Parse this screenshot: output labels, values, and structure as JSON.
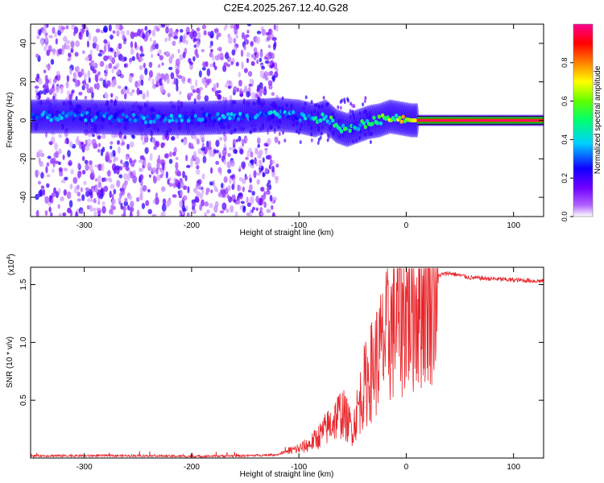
{
  "title": "C2E4.2025.267.12.40.G28",
  "chart_data": [
    {
      "type": "heatmap",
      "panel": "spectrogram",
      "xlabel": "Height of straight line (km)",
      "ylabel": "Frequency (Hz)",
      "xlim": [
        -350,
        128
      ],
      "ylim": [
        -50,
        50
      ],
      "xticks": [
        -300,
        -200,
        -100,
        0,
        100
      ],
      "xtick_labels": [
        "-300",
        "-200",
        "-100",
        "0",
        "100"
      ],
      "yticks": [
        -40,
        -20,
        0,
        20,
        40
      ],
      "ytick_labels": [
        "-40",
        "-20",
        "0",
        "20",
        "40"
      ],
      "colorbar": {
        "label": "Normalized spectral amplitude",
        "range": [
          0,
          1
        ],
        "ticks": [
          0.0,
          0.2,
          0.4,
          0.6,
          0.8
        ],
        "tick_labels": [
          "0.0",
          "0.2",
          "0.4",
          "0.6",
          "0.8"
        ],
        "colors": [
          "#ffffff",
          "#9a00ff",
          "#1a00ff",
          "#00ffff",
          "#00ff00",
          "#ffff00",
          "#ff8000",
          "#ff0000",
          "#ff00a0"
        ]
      },
      "ridge": {
        "description_points_x": [
          -350,
          -300,
          -250,
          -200,
          -150,
          -120,
          -100,
          -85,
          -75,
          -65,
          -55,
          -45,
          -35,
          -25,
          -15,
          -5,
          5,
          20,
          60,
          128
        ],
        "frequency_center_hz": [
          2,
          2,
          1,
          1,
          2,
          3,
          2,
          0,
          2,
          -3,
          -5,
          -3,
          -1,
          0,
          2,
          1,
          0,
          0,
          0,
          0
        ],
        "amplitude": [
          0.3,
          0.3,
          0.3,
          0.3,
          0.3,
          0.35,
          0.3,
          0.4,
          0.45,
          0.5,
          0.4,
          0.45,
          0.5,
          0.55,
          0.6,
          0.6,
          0.65,
          0.9,
          0.95,
          0.95
        ]
      }
    },
    {
      "type": "line",
      "panel": "snr",
      "xlabel": "Height of straight line (km)",
      "ylabel": "SNR (10 * v/v)",
      "y_multiplier_label": "(x10",
      "y_multiplier_exp": "4",
      "xlim": [
        -350,
        128
      ],
      "ylim": [
        0,
        1.65
      ],
      "xticks": [
        -300,
        -200,
        -100,
        0,
        100
      ],
      "xtick_labels": [
        "-300",
        "-200",
        "-100",
        "0",
        "100"
      ],
      "yticks": [
        0.5,
        1.0,
        1.5
      ],
      "ytick_labels": [
        "0.5",
        "1.0",
        "1.5"
      ],
      "color": "#e8252a",
      "series": [
        {
          "name": "SNR",
          "x": [
            -350,
            -300,
            -250,
            -200,
            -150,
            -120,
            -110,
            -100,
            -90,
            -80,
            -70,
            -60,
            -50,
            -40,
            -30,
            -20,
            -10,
            0,
            10,
            20,
            30,
            40,
            50,
            60,
            80,
            100,
            128
          ],
          "y": [
            0.02,
            0.02,
            0.02,
            0.015,
            0.02,
            0.03,
            0.06,
            0.08,
            0.12,
            0.2,
            0.3,
            0.4,
            0.25,
            0.6,
            0.8,
            1.0,
            1.2,
            1.3,
            1.35,
            1.5,
            1.58,
            1.6,
            1.58,
            1.56,
            1.55,
            1.54,
            1.53
          ]
        }
      ]
    }
  ]
}
